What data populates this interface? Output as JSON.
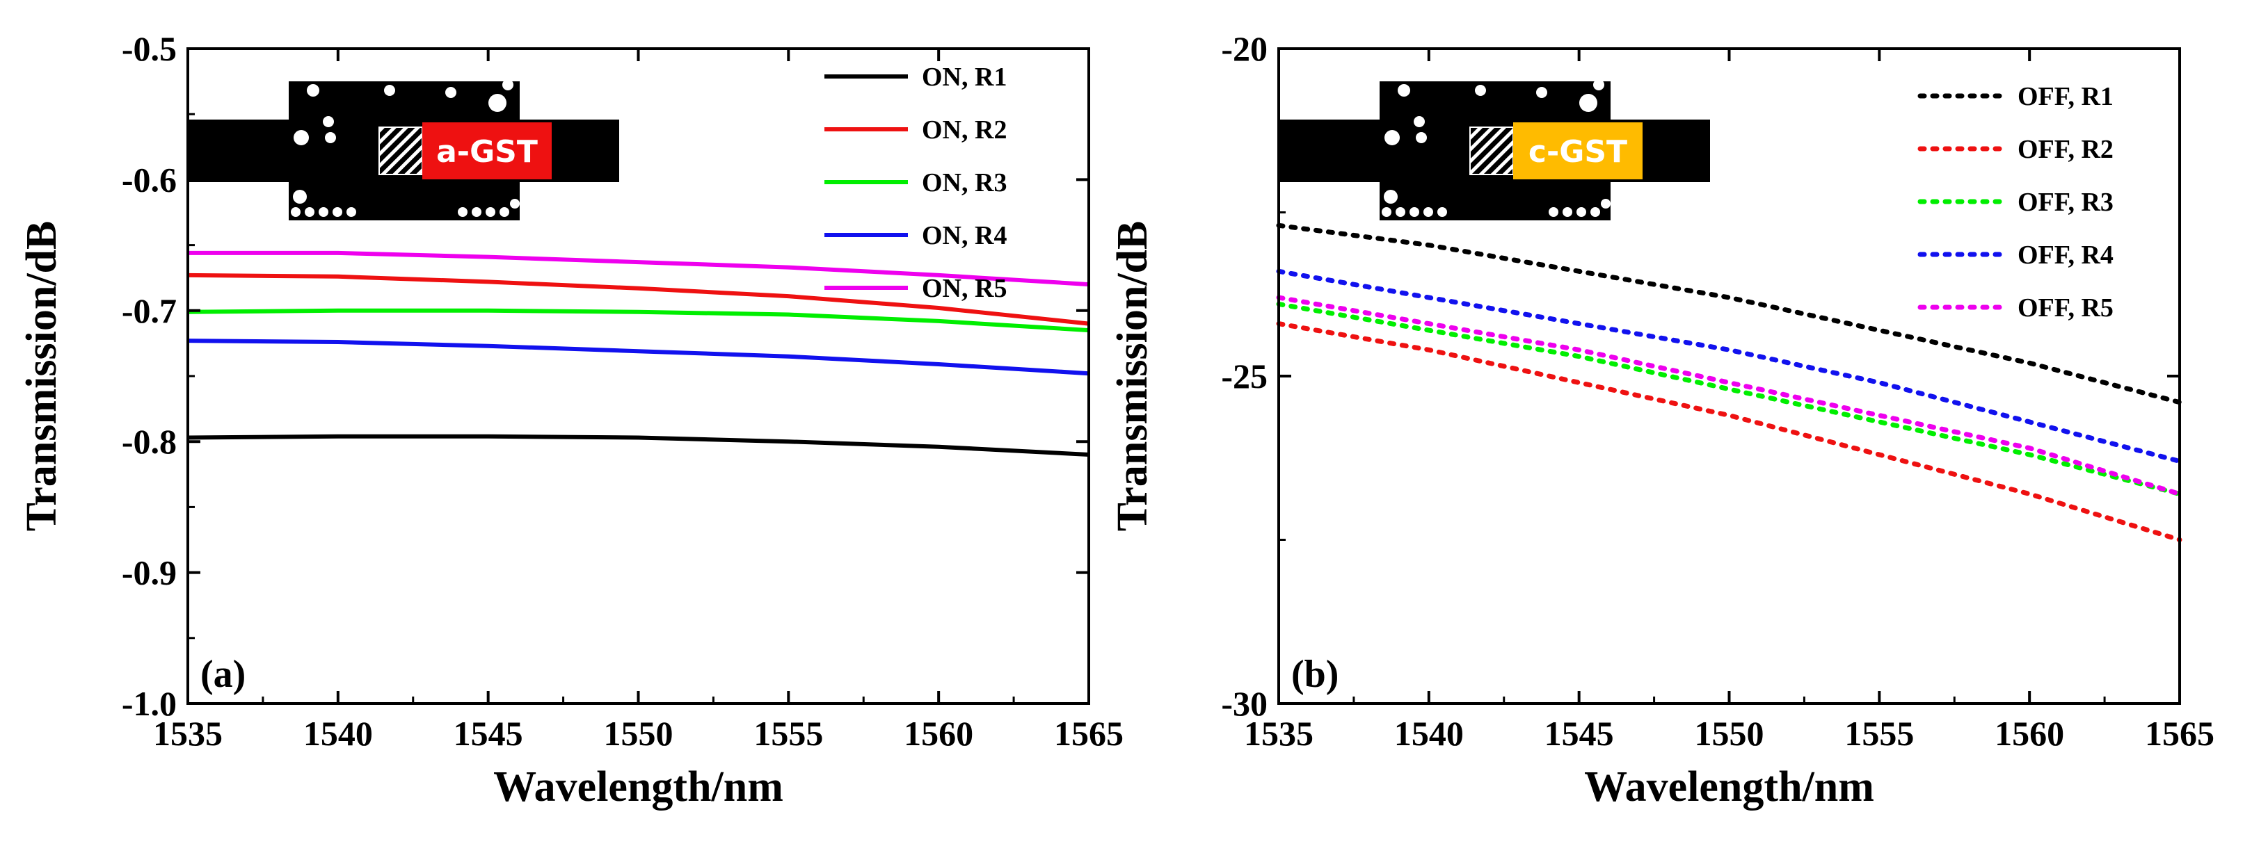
{
  "figure": {
    "panels": [
      "a",
      "b"
    ]
  },
  "chart_data": [
    {
      "type": "line",
      "panel_label": "(a)",
      "xlabel": "Wavelength/nm",
      "ylabel": "Transmission/dB",
      "xlim": [
        1535,
        1565
      ],
      "ylim": [
        -1.0,
        -0.5
      ],
      "xticks": [
        "1535",
        "1540",
        "1545",
        "1550",
        "1555",
        "1560",
        "1565"
      ],
      "yticks": [
        "-0.5",
        "-0.6",
        "-0.7",
        "-0.8",
        "-0.9",
        "-1.0"
      ],
      "x": [
        1535,
        1540,
        1545,
        1550,
        1555,
        1560,
        1565
      ],
      "line_style": "solid",
      "legend_position": "top-right",
      "grid": false,
      "inset_label": "a-GST",
      "inset_label_color": "#ee1111",
      "series": [
        {
          "name": "ON, R1",
          "color": "#000000",
          "values": [
            -0.797,
            -0.796,
            -0.796,
            -0.797,
            -0.8,
            -0.804,
            -0.81
          ]
        },
        {
          "name": "ON, R2",
          "color": "#ee1111",
          "values": [
            -0.673,
            -0.674,
            -0.678,
            -0.683,
            -0.689,
            -0.698,
            -0.71
          ]
        },
        {
          "name": "ON, R3",
          "color": "#00ee00",
          "values": [
            -0.701,
            -0.7,
            -0.7,
            -0.701,
            -0.703,
            -0.708,
            -0.715
          ]
        },
        {
          "name": "ON, R4",
          "color": "#1111ee",
          "values": [
            -0.723,
            -0.724,
            -0.727,
            -0.731,
            -0.735,
            -0.741,
            -0.748
          ]
        },
        {
          "name": "ON, R5",
          "color": "#ee00ee",
          "values": [
            -0.656,
            -0.656,
            -0.659,
            -0.663,
            -0.667,
            -0.673,
            -0.68
          ]
        }
      ]
    },
    {
      "type": "line",
      "panel_label": "(b)",
      "xlabel": "Wavelength/nm",
      "ylabel": "Transmission/dB",
      "xlim": [
        1535,
        1565
      ],
      "ylim": [
        -30,
        -20
      ],
      "xticks": [
        "1535",
        "1540",
        "1545",
        "1550",
        "1555",
        "1560",
        "1565"
      ],
      "yticks": [
        "-20",
        "-25",
        "-30"
      ],
      "x": [
        1535,
        1540,
        1545,
        1550,
        1555,
        1560,
        1565
      ],
      "line_style": "dotted",
      "legend_position": "top-right",
      "grid": false,
      "inset_label": "c-GST",
      "inset_label_color": "#ffbb00",
      "series": [
        {
          "name": "OFF, R1",
          "color": "#000000",
          "values": [
            -22.7,
            -23.0,
            -23.4,
            -23.8,
            -24.3,
            -24.8,
            -25.4
          ]
        },
        {
          "name": "OFF, R2",
          "color": "#ee1111",
          "values": [
            -24.2,
            -24.6,
            -25.1,
            -25.6,
            -26.2,
            -26.8,
            -27.5
          ]
        },
        {
          "name": "OFF, R3",
          "color": "#00ee00",
          "values": [
            -23.9,
            -24.3,
            -24.7,
            -25.2,
            -25.7,
            -26.2,
            -26.8
          ]
        },
        {
          "name": "OFF, R4",
          "color": "#1111ee",
          "values": [
            -23.4,
            -23.8,
            -24.2,
            -24.6,
            -25.1,
            -25.7,
            -26.3
          ]
        },
        {
          "name": "OFF, R5",
          "color": "#ee00ee",
          "values": [
            -23.8,
            -24.2,
            -24.6,
            -25.1,
            -25.6,
            -26.1,
            -26.8
          ]
        }
      ]
    }
  ]
}
